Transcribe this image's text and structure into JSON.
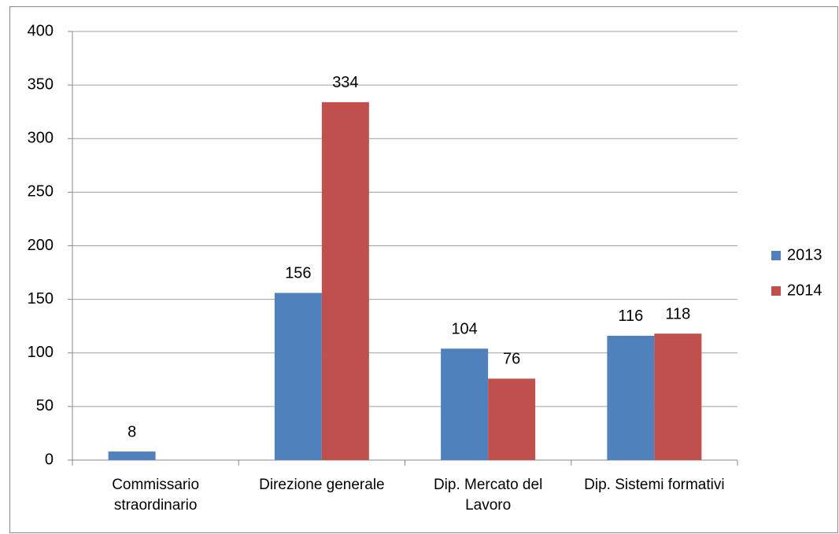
{
  "chart_data": {
    "type": "bar",
    "categories": [
      "Commissario straordinario",
      "Direzione generale",
      "Dip. Mercato del Lavoro",
      "Dip. Sistemi formativi"
    ],
    "series": [
      {
        "name": "2013",
        "color": "#4f81bd",
        "values": [
          8,
          156,
          104,
          116
        ]
      },
      {
        "name": "2014",
        "color": "#c0504d",
        "values": [
          null,
          334,
          76,
          118
        ]
      }
    ],
    "ylim": [
      0,
      400
    ],
    "yticks": [
      0,
      50,
      100,
      150,
      200,
      250,
      300,
      350,
      400
    ],
    "grid": true,
    "legend": "right"
  }
}
